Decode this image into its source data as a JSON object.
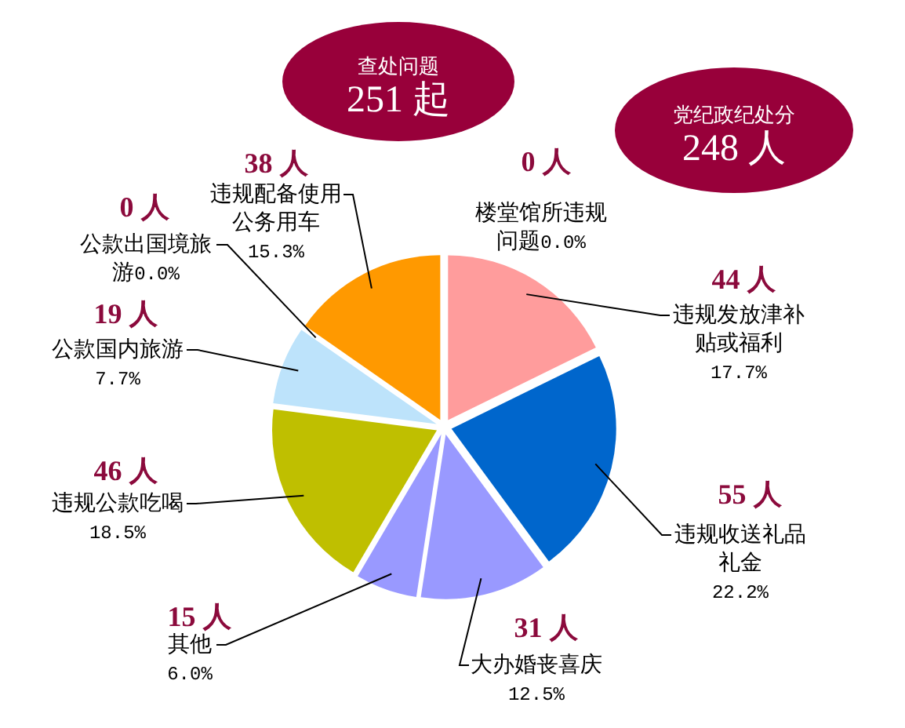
{
  "chart_data": {
    "type": "pie",
    "categories": [
      "楼堂馆所违规问题",
      "违规发放津补贴或福利",
      "违规收送礼品礼金",
      "大办婚丧喜庆",
      "其他",
      "违规公款吃喝",
      "公款国内旅游",
      "公款出国境旅游",
      "违规配备使用公务用车"
    ],
    "values": [
      0,
      44,
      55,
      31,
      15,
      46,
      19,
      0,
      38
    ],
    "colors": [
      "#9080c8",
      "#ff9c9c",
      "#0066cc",
      "#9999ff",
      "#9999ff",
      "#bfbf00",
      "#bde3fb",
      "#7aa0b8",
      "#ff9900"
    ],
    "value_labels": [
      "0 人",
      "44 人",
      "55 人",
      "31 人",
      "15 人",
      "46 人",
      "19 人",
      "0 人",
      "38 人"
    ],
    "annotations": [
      "查处问题",
      "251 起",
      "党纪政纪处分",
      "248 人",
      "0.0%",
      "17.7%",
      "22.2%",
      "12.5%",
      "6.0%",
      "18.5%",
      "7.7%",
      "0.0%",
      "15.3%"
    ]
  }
}
